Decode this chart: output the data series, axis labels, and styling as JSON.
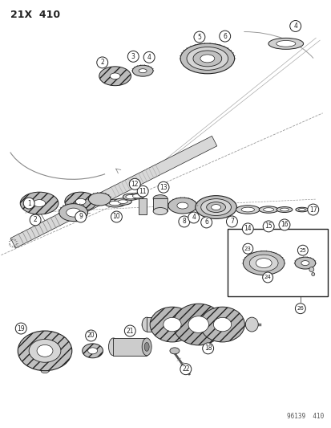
{
  "title": "21X  410",
  "footer": "96139  410",
  "bg_color": "#ffffff",
  "lc": "#222222",
  "gc": "#cccccc",
  "figsize": [
    4.14,
    5.33
  ],
  "dpi": 100
}
